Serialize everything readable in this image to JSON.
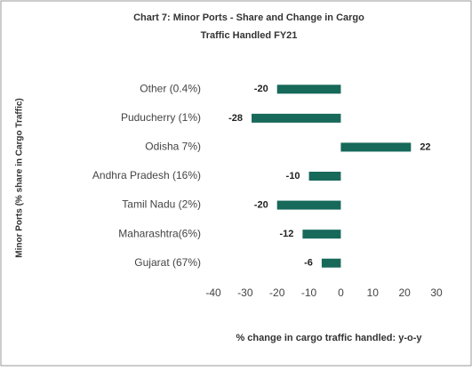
{
  "chart_data": {
    "type": "barh",
    "title": [
      "Chart 7: Minor Ports - Share and Change in Cargo",
      "Traffic Handled FY21"
    ],
    "xlabel": "% change in cargo traffic handled: y-o-y",
    "ylabel": "Minor Ports (% share in Cargo Traffic)",
    "categories": [
      "Other (0.4%)",
      "Puducherry (1%)",
      "Odisha 7%)",
      "Andhra Pradesh (16%)",
      "Tamil Nadu (2%)",
      "Maharashtra(6%)",
      "Gujarat (67%)"
    ],
    "values": [
      -20,
      -28,
      22,
      -10,
      -20,
      -12,
      -6
    ],
    "color": "#17695a",
    "xlim": [
      -40,
      30
    ],
    "xticks": [
      -40,
      -30,
      -20,
      -10,
      0,
      10,
      20,
      30
    ]
  }
}
